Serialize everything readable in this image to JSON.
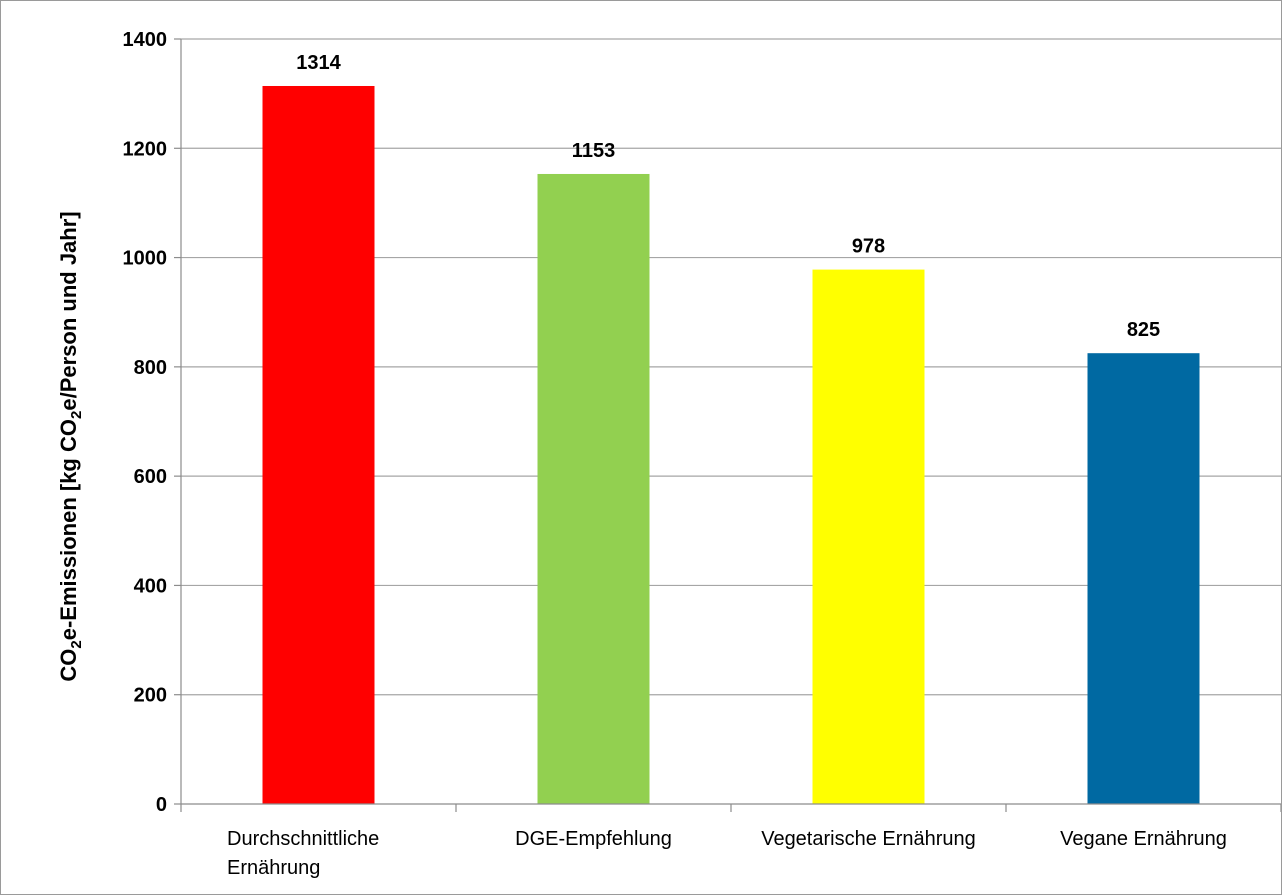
{
  "chart_data": {
    "type": "bar",
    "categories": [
      [
        "Durchschnittliche",
        "Ernährung"
      ],
      [
        "DGE-Empfehlung"
      ],
      [
        "Vegetarische Ernährung"
      ],
      [
        "Vegane Ernährung"
      ]
    ],
    "values": [
      1314,
      1153,
      978,
      825
    ],
    "data_labels": [
      "1314",
      "1153",
      "978",
      "825"
    ],
    "colors": [
      "#ff0000",
      "#92d050",
      "#ffff00",
      "#0069a2"
    ],
    "ylabel": {
      "parts": [
        {
          "text": "CO",
          "sub": false
        },
        {
          "text": "2",
          "sub": true
        },
        {
          "text": "e-Emissionen [kg CO",
          "sub": false
        },
        {
          "text": "2",
          "sub": true
        },
        {
          "text": "e/Person und Jahr]",
          "sub": false
        }
      ]
    },
    "ylim": [
      0,
      1400
    ],
    "yticks": [
      0,
      200,
      400,
      600,
      800,
      1000,
      1200,
      1400
    ],
    "ytick_labels": [
      "0",
      "200",
      "400",
      "600",
      "800",
      "1000",
      "1200",
      "1400"
    ],
    "grid": true,
    "legend": "none",
    "gridline_color": "#a6a6a6",
    "axis_color": "#8c8c8c"
  }
}
